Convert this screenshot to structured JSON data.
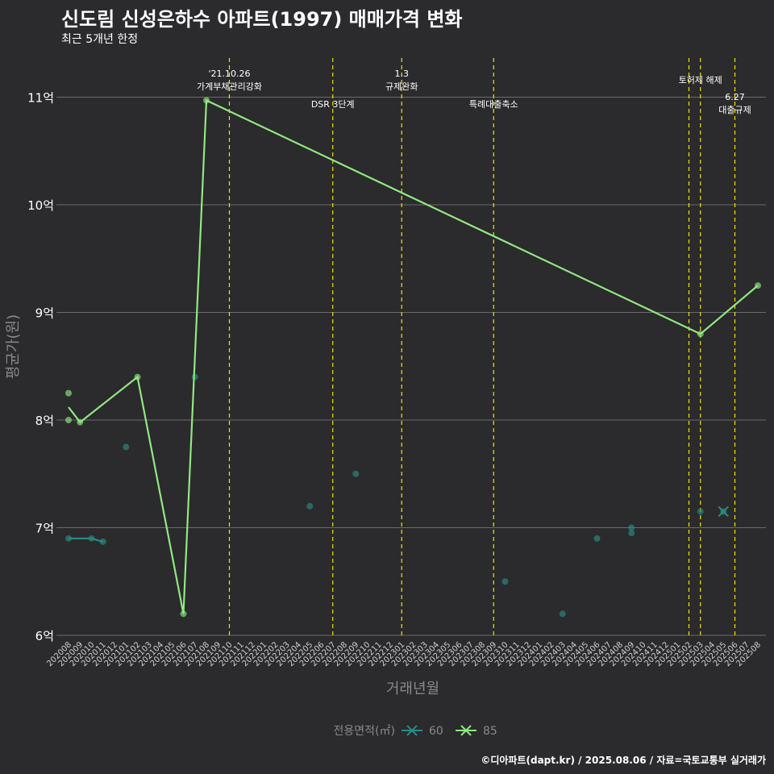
{
  "chart_data": {
    "type": "line",
    "title": "신도림 신성은하수 아파트(1997) 매매가격 변화",
    "subtitle": "최근 5개년 한정",
    "xlabel": "거래년월",
    "ylabel": "평균가(원)",
    "caption": "©디아파트(dapt.kr) / 2025.08.06 / 자료=국토교통부 실거래가",
    "y_ticks": [
      {
        "value": 6,
        "label": "6억"
      },
      {
        "value": 7,
        "label": "7억"
      },
      {
        "value": 8,
        "label": "8억"
      },
      {
        "value": 9,
        "label": "9억"
      },
      {
        "value": 10,
        "label": "10억"
      },
      {
        "value": 11,
        "label": "11억"
      }
    ],
    "ylim": [
      6,
      11.5
    ],
    "months": [
      "202008",
      "202009",
      "202010",
      "202011",
      "202012",
      "202101",
      "202102",
      "202103",
      "202104",
      "202105",
      "202106",
      "202107",
      "202108",
      "202109",
      "202110",
      "202111",
      "202112",
      "202201",
      "202202",
      "202203",
      "202204",
      "202205",
      "202206",
      "202207",
      "202208",
      "202209",
      "202210",
      "202211",
      "202212",
      "202301",
      "202302",
      "202303",
      "202304",
      "202305",
      "202306",
      "202307",
      "202308",
      "202309",
      "202310",
      "202311",
      "202312",
      "202401",
      "202402",
      "202403",
      "202404",
      "202405",
      "202406",
      "202407",
      "202408",
      "202409",
      "202410",
      "202411",
      "202412",
      "202501",
      "202502",
      "202503",
      "202504",
      "202505",
      "202506",
      "202507",
      "202508"
    ],
    "legend": {
      "title": "전용면적(㎡)",
      "position": "bottom"
    },
    "series": [
      {
        "name": "60",
        "color": "#2a8c86",
        "line": [
          {
            "x": "202008",
            "y": 6.9
          },
          {
            "x": "202010",
            "y": 6.9
          },
          {
            "x": "202011",
            "y": 6.87
          }
        ],
        "points": [
          {
            "x": "202008",
            "y": 6.9
          },
          {
            "x": "202010",
            "y": 6.9
          },
          {
            "x": "202011",
            "y": 6.87
          },
          {
            "x": "202101",
            "y": 7.75
          },
          {
            "x": "202107",
            "y": 8.4
          },
          {
            "x": "202205",
            "y": 7.2
          },
          {
            "x": "202209",
            "y": 7.5
          },
          {
            "x": "202310",
            "y": 6.5
          },
          {
            "x": "202403",
            "y": 6.2
          },
          {
            "x": "202406",
            "y": 6.9
          },
          {
            "x": "202409",
            "y": 7.0
          },
          {
            "x": "202409",
            "y": 6.95
          },
          {
            "x": "202503",
            "y": 7.15
          },
          {
            "x": "202505",
            "y": 7.15
          }
        ]
      },
      {
        "name": "85",
        "color": "#90e882",
        "line": [
          {
            "x": "202008",
            "y": 8.12
          },
          {
            "x": "202009",
            "y": 7.98
          },
          {
            "x": "202102",
            "y": 8.4
          },
          {
            "x": "202106",
            "y": 6.2
          },
          {
            "x": "202108",
            "y": 10.97
          },
          {
            "x": "202503",
            "y": 8.8
          },
          {
            "x": "202508",
            "y": 9.25
          }
        ],
        "points": [
          {
            "x": "202008",
            "y": 8.25
          },
          {
            "x": "202008",
            "y": 8.0
          },
          {
            "x": "202009",
            "y": 7.98
          },
          {
            "x": "202102",
            "y": 8.4
          },
          {
            "x": "202106",
            "y": 6.2
          },
          {
            "x": "202108",
            "y": 10.97
          },
          {
            "x": "202503",
            "y": 8.8
          },
          {
            "x": "202508",
            "y": 9.25
          }
        ]
      }
    ],
    "events": [
      {
        "x": "202110",
        "lines": [
          "'21.10.26",
          "가계부채관리강화"
        ],
        "level": 1
      },
      {
        "x": "202207",
        "lines": [
          "DSR 3단계"
        ],
        "level": 2
      },
      {
        "x": "202301",
        "lines": [
          "1.3",
          "규제완화"
        ],
        "level": 1
      },
      {
        "x": "202309",
        "lines": [
          "특례대출축소"
        ],
        "level": 2
      },
      {
        "x": "202502",
        "lines": [],
        "level": 1
      },
      {
        "x": "202503",
        "lines": [
          "토허제 해제"
        ],
        "level": 1
      },
      {
        "x": "202506",
        "lines": [
          "6.27",
          "대출규제"
        ],
        "level": 3
      }
    ]
  }
}
